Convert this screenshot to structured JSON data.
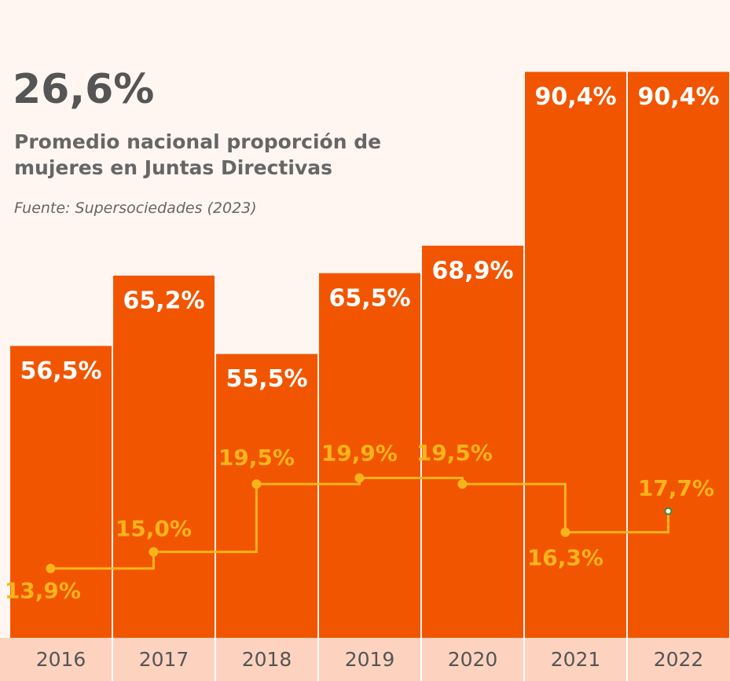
{
  "chart_data": {
    "type": "bar",
    "headline": "26,6%",
    "subtitle": "Promedio nacional proporción de mujeres en Juntas Directivas",
    "source": "Fuente: Supersociedades (2023)",
    "categories": [
      "2016",
      "2017",
      "2018",
      "2019",
      "2020",
      "2021",
      "2022"
    ],
    "ylim": [
      20.4,
      92
    ],
    "y2lim": [
      9.3,
      47.7
    ],
    "series": [
      {
        "type": "bar",
        "color": "#f25500",
        "values": [
          56.5,
          65.2,
          55.5,
          65.5,
          68.9,
          90.4,
          90.4
        ],
        "value_labels": [
          "56,5%",
          "65,2%",
          "55,5%",
          "65,5%",
          "68,9%",
          "90,4%",
          "90,4%"
        ]
      },
      {
        "type": "step",
        "axis": "y2",
        "color": "#f9b41a",
        "values": [
          13.9,
          15.0,
          19.5,
          19.9,
          19.5,
          16.3,
          17.7
        ],
        "value_labels": [
          "13,9%",
          "15,0%",
          "19,5%",
          "19,9%",
          "19,5%",
          "16,3%",
          "17,7%"
        ]
      }
    ]
  }
}
